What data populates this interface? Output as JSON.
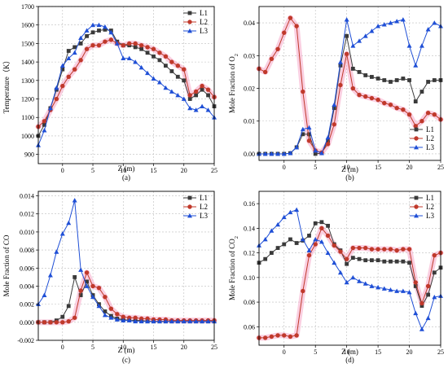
{
  "colors": {
    "L1": "#3a3a3a",
    "L2": "#c0392b",
    "L3": "#1f4fd6",
    "L2_band": "#f5a8c8"
  },
  "chart_data": [
    {
      "type": "line",
      "caption": "(a)",
      "xlabel": "Z (m)",
      "ylabel": "Temperature（K）",
      "xlim": [
        -4,
        25
      ],
      "ylim": [
        850,
        1700
      ],
      "xticks": [
        0,
        5,
        10,
        15,
        20,
        25
      ],
      "yticks": [
        900,
        1000,
        1100,
        1200,
        1300,
        1400,
        1500,
        1600,
        1700
      ],
      "grid": true,
      "legend_position": "top-right",
      "x": [
        -4,
        -3,
        -2,
        -1,
        0,
        1,
        2,
        3,
        4,
        5,
        6,
        7,
        8,
        9,
        10,
        11,
        12,
        13,
        14,
        15,
        16,
        17,
        18,
        19,
        20,
        21,
        22,
        23,
        24,
        25
      ],
      "series": [
        {
          "name": "L1",
          "marker": "square",
          "values": [
            1000,
            1060,
            1150,
            1250,
            1360,
            1460,
            1480,
            1500,
            1540,
            1560,
            1570,
            1575,
            1570,
            1510,
            1490,
            1490,
            1480,
            1470,
            1450,
            1430,
            1410,
            1380,
            1350,
            1320,
            1300,
            1200,
            1220,
            1250,
            1220,
            1160
          ]
        },
        {
          "name": "L2",
          "marker": "circle",
          "values": [
            1050,
            1080,
            1140,
            1200,
            1270,
            1320,
            1360,
            1410,
            1470,
            1490,
            1490,
            1510,
            1520,
            1500,
            1490,
            1500,
            1500,
            1490,
            1480,
            1470,
            1450,
            1430,
            1400,
            1380,
            1360,
            1220,
            1240,
            1270,
            1250,
            1210
          ]
        },
        {
          "name": "L3",
          "marker": "triangle",
          "values": [
            950,
            1030,
            1150,
            1260,
            1380,
            1420,
            1450,
            1530,
            1570,
            1600,
            1600,
            1590,
            1560,
            1500,
            1420,
            1420,
            1400,
            1370,
            1340,
            1310,
            1290,
            1260,
            1240,
            1220,
            1200,
            1150,
            1140,
            1160,
            1140,
            1100
          ]
        }
      ]
    },
    {
      "type": "line",
      "caption": "(b)",
      "xlabel": "Z (m)",
      "ylabel": "Mole Fraction of O",
      "ylabel_sub": "2",
      "xlim": [
        -4,
        25
      ],
      "ylim": [
        -0.002,
        0.045
      ],
      "xticks": [
        0,
        5,
        10,
        15,
        20,
        25
      ],
      "yticks": [
        0.0,
        0.01,
        0.02,
        0.03,
        0.04
      ],
      "ytick_labels": [
        "0.00",
        "0.01",
        "0.02",
        "0.03",
        "0.04"
      ],
      "grid": true,
      "legend_position": "bottom-right",
      "x": [
        -4,
        -3,
        -2,
        -1,
        0,
        1,
        2,
        3,
        4,
        5,
        6,
        7,
        8,
        9,
        10,
        11,
        12,
        13,
        14,
        15,
        16,
        17,
        18,
        19,
        20,
        21,
        22,
        23,
        24,
        25
      ],
      "series": [
        {
          "name": "L1",
          "marker": "square",
          "values": [
            0.0,
            0.0,
            0.0,
            0.0,
            0.0,
            0.0002,
            0.002,
            0.006,
            0.006,
            0.0,
            0.0002,
            0.004,
            0.014,
            0.027,
            0.036,
            0.026,
            0.025,
            0.024,
            0.0235,
            0.023,
            0.0225,
            0.022,
            0.0225,
            0.023,
            0.0225,
            0.016,
            0.019,
            0.022,
            0.0225,
            0.0225
          ]
        },
        {
          "name": "L2",
          "marker": "circle",
          "values": [
            0.026,
            0.025,
            0.029,
            0.032,
            0.037,
            0.0415,
            0.039,
            0.019,
            0.004,
            0.001,
            0.0004,
            0.003,
            0.009,
            0.021,
            0.0305,
            0.02,
            0.018,
            0.0175,
            0.017,
            0.0165,
            0.0155,
            0.015,
            0.014,
            0.0135,
            0.012,
            0.0085,
            0.01,
            0.0125,
            0.012,
            0.0105
          ]
        },
        {
          "name": "L3",
          "marker": "triangle",
          "values": [
            0.0,
            0.0,
            0.0,
            0.0,
            0.0,
            0.0002,
            0.002,
            0.0075,
            0.008,
            0.001,
            0.0002,
            0.005,
            0.015,
            0.028,
            0.041,
            0.033,
            0.0345,
            0.036,
            0.0375,
            0.039,
            0.0395,
            0.04,
            0.0405,
            0.041,
            0.033,
            0.027,
            0.033,
            0.038,
            0.04,
            0.039
          ]
        }
      ]
    },
    {
      "type": "line",
      "caption": "(c)",
      "xlabel": "Z (m)",
      "ylabel": "Mole Fraction of CO",
      "xlim": [
        -4,
        25
      ],
      "ylim": [
        -0.002,
        0.0145
      ],
      "xticks": [
        0,
        5,
        10,
        15,
        20,
        25
      ],
      "yticks": [
        -0.002,
        0.0,
        0.002,
        0.004,
        0.006,
        0.008,
        0.01,
        0.012,
        0.014
      ],
      "ytick_labels": [
        "-0.002",
        "0.000",
        "0.002",
        "0.004",
        "0.006",
        "0.008",
        "0.010",
        "0.012",
        "0.014"
      ],
      "grid": true,
      "legend_position": "top-right",
      "x": [
        -4,
        -3,
        -2,
        -1,
        0,
        1,
        2,
        3,
        4,
        5,
        6,
        7,
        8,
        9,
        10,
        11,
        12,
        13,
        14,
        15,
        16,
        17,
        18,
        19,
        20,
        21,
        22,
        23,
        24,
        25
      ],
      "series": [
        {
          "name": "L1",
          "marker": "square",
          "values": [
            0.0,
            0.0,
            0.0,
            0.0002,
            0.0006,
            0.0018,
            0.005,
            0.003,
            0.0045,
            0.003,
            0.002,
            0.0012,
            0.0007,
            0.0004,
            0.0003,
            0.0002,
            0.0002,
            0.0002,
            0.0001,
            0.0001,
            0.0001,
            0.0001,
            0.0001,
            0.0001,
            0.0001,
            0.0001,
            0.0001,
            0.0001,
            0.0001,
            0.0001
          ]
        },
        {
          "name": "L2",
          "marker": "circle",
          "values": [
            0.0,
            0.0,
            0.0,
            0.0,
            0.0,
            0.0001,
            0.0005,
            0.0035,
            0.0055,
            0.004,
            0.0038,
            0.0028,
            0.0015,
            0.0009,
            0.0006,
            0.0005,
            0.0005,
            0.0004,
            0.0004,
            0.0003,
            0.0003,
            0.0003,
            0.0002,
            0.0002,
            0.0002,
            0.0002,
            0.0002,
            0.0002,
            0.0002,
            0.0002
          ]
        },
        {
          "name": "L3",
          "marker": "triangle",
          "values": [
            0.002,
            0.003,
            0.0052,
            0.0078,
            0.0098,
            0.011,
            0.0135,
            0.0058,
            0.004,
            0.0028,
            0.0018,
            0.0008,
            0.0005,
            0.0003,
            0.0002,
            0.0002,
            0.0001,
            0.0001,
            0.0001,
            0.0001,
            0.0001,
            0.0001,
            0.0001,
            0.0001,
            0.0001,
            0.0001,
            0.0001,
            0.0001,
            0.0001,
            0.0001
          ]
        }
      ]
    },
    {
      "type": "line",
      "caption": "(d)",
      "xlabel": "Z (m)",
      "ylabel": "Mole Fraction of CO",
      "ylabel_sub": "2",
      "xlim": [
        -4,
        25
      ],
      "ylim": [
        0.045,
        0.17
      ],
      "xticks": [
        0,
        5,
        10,
        15,
        20,
        25
      ],
      "yticks": [
        0.06,
        0.08,
        0.1,
        0.12,
        0.14,
        0.16
      ],
      "ytick_labels": [
        "0.06",
        "0.08",
        "0.10",
        "0.12",
        "0.14",
        "0.16"
      ],
      "grid": true,
      "legend_position": "top-right",
      "x": [
        -4,
        -3,
        -2,
        -1,
        0,
        1,
        2,
        3,
        4,
        5,
        6,
        7,
        8,
        9,
        10,
        11,
        12,
        13,
        14,
        15,
        16,
        17,
        18,
        19,
        20,
        21,
        22,
        23,
        24,
        25
      ],
      "series": [
        {
          "name": "L1",
          "marker": "square",
          "values": [
            0.112,
            0.115,
            0.12,
            0.124,
            0.127,
            0.131,
            0.128,
            0.13,
            0.134,
            0.144,
            0.145,
            0.142,
            0.127,
            0.122,
            0.111,
            0.116,
            0.115,
            0.114,
            0.114,
            0.114,
            0.113,
            0.113,
            0.113,
            0.113,
            0.112,
            0.093,
            0.077,
            0.086,
            0.104,
            0.108
          ]
        },
        {
          "name": "L2",
          "marker": "circle",
          "values": [
            0.051,
            0.051,
            0.052,
            0.053,
            0.053,
            0.052,
            0.053,
            0.089,
            0.118,
            0.127,
            0.14,
            0.134,
            0.126,
            0.121,
            0.115,
            0.124,
            0.124,
            0.124,
            0.123,
            0.123,
            0.123,
            0.123,
            0.122,
            0.123,
            0.123,
            0.096,
            0.079,
            0.093,
            0.118,
            0.12
          ]
        },
        {
          "name": "L3",
          "marker": "triangle",
          "values": [
            0.126,
            0.131,
            0.138,
            0.143,
            0.149,
            0.153,
            0.155,
            0.131,
            0.122,
            0.131,
            0.129,
            0.12,
            0.112,
            0.104,
            0.096,
            0.1,
            0.097,
            0.095,
            0.093,
            0.092,
            0.091,
            0.09,
            0.089,
            0.089,
            0.088,
            0.071,
            0.058,
            0.067,
            0.084,
            0.085
          ]
        }
      ]
    }
  ]
}
